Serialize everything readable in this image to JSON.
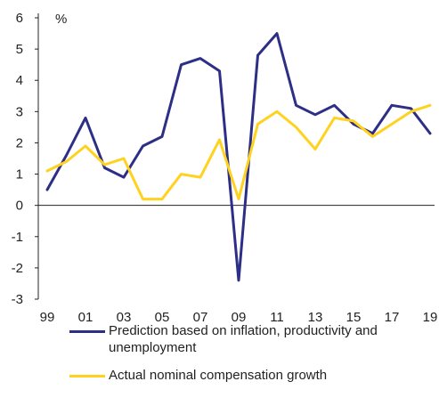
{
  "chart_data": {
    "type": "line",
    "ylabel": "%",
    "ylim": [
      -3,
      6
    ],
    "y_ticks": [
      "6",
      "5",
      "4",
      "3",
      "2",
      "1",
      "0",
      "-1",
      "-2",
      "-3"
    ],
    "x_tick_labels": [
      "99",
      "01",
      "03",
      "05",
      "07",
      "09",
      "11",
      "13",
      "15",
      "17",
      "19"
    ],
    "x": [
      1999,
      2000,
      2001,
      2002,
      2003,
      2004,
      2005,
      2006,
      2007,
      2008,
      2009,
      2010,
      2011,
      2012,
      2013,
      2014,
      2015,
      2016,
      2017,
      2018,
      2019
    ],
    "series": [
      {
        "name": "Prediction based on inflation, productivity and unemployment",
        "color": "#2d2f86",
        "values": [
          0.5,
          1.6,
          2.8,
          1.2,
          0.9,
          1.9,
          2.2,
          4.5,
          4.7,
          4.3,
          -2.4,
          4.8,
          5.5,
          3.2,
          2.9,
          3.2,
          2.6,
          2.3,
          3.2,
          3.1,
          2.3
        ]
      },
      {
        "name": "Actual nominal compensation growth",
        "color": "#ffd21f",
        "values": [
          1.1,
          1.4,
          1.9,
          1.3,
          1.5,
          0.2,
          0.2,
          1.0,
          0.9,
          2.1,
          0.2,
          2.6,
          3.0,
          2.5,
          1.8,
          2.8,
          2.7,
          2.2,
          2.6,
          3.0,
          3.2
        ]
      }
    ],
    "grid": false,
    "legend_position": "bottom"
  }
}
